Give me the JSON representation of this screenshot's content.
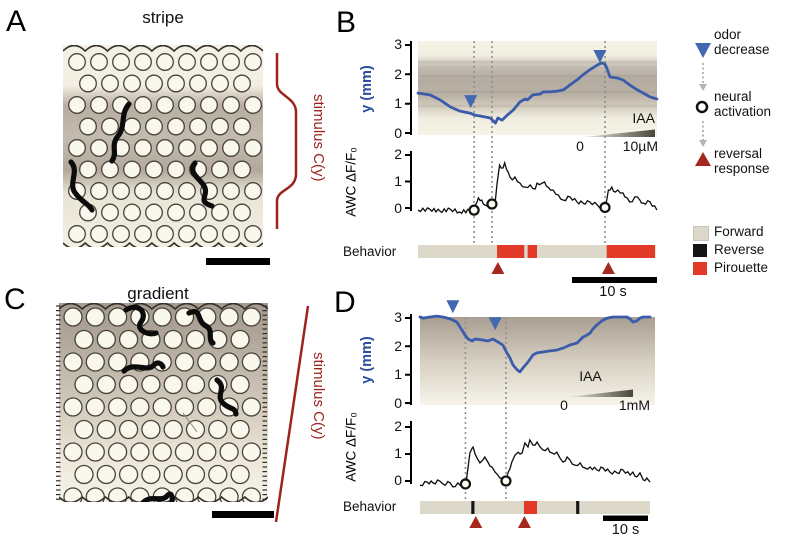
{
  "figure": {
    "panel_a": {
      "letter": "A",
      "title": "stripe",
      "stimulus_label": "stimulus C(y)"
    },
    "panel_c": {
      "letter": "C",
      "title": "gradient",
      "stimulus_label": "stimulus C(y)"
    },
    "panel_b": {
      "letter": "B",
      "pos_axis_label": "y (mm)",
      "pos_ticks": [
        "3",
        "2",
        "1",
        "0"
      ],
      "awc_axis_label": "AWC ΔF/F₀",
      "awc_ticks": [
        "2",
        "1",
        "0"
      ],
      "behavior_label": "Behavior",
      "iaa_label": "IAA",
      "iaa_min": "0",
      "iaa_max": "10µM",
      "time_scale_label": "10 s"
    },
    "panel_d": {
      "letter": "D",
      "pos_axis_label": "y (mm)",
      "pos_ticks": [
        "3",
        "2",
        "1",
        "0"
      ],
      "awc_axis_label": "AWC ΔF/F₀",
      "awc_ticks": [
        "2",
        "1",
        "0"
      ],
      "behavior_label": "Behavior",
      "iaa_label": "IAA",
      "iaa_min": "0",
      "iaa_max": "1mM",
      "time_scale_label": "10 s"
    }
  },
  "legend": {
    "markers": [
      {
        "label": "odor decrease"
      },
      {
        "label": "neural activation"
      },
      {
        "label": "reversal response"
      }
    ],
    "behavior_key": [
      {
        "label": "Forward",
        "color": "#dcd8ca"
      },
      {
        "label": "Reverse",
        "color": "#171513"
      },
      {
        "label": "Pirouette",
        "color": "#e23a29"
      }
    ]
  },
  "colors": {
    "trace_blue": "#3b5bab",
    "odor_marker_blue": "#4468b0",
    "stimulus_red": "#9c241c",
    "reversal_red": "#a5281e",
    "pirouette_red": "#e23a29",
    "forward_gray": "#dcd8ca",
    "reverse_black": "#171513"
  },
  "chart_data": [
    {
      "id": "B_position",
      "type": "line",
      "title": "worm position in odor stripe",
      "xlabel": "time (s, scale bar 10 s)",
      "ylabel": "y (mm)",
      "ylim": [
        0,
        3
      ],
      "background": "horizontal IAA odor stripe 0–10µM",
      "points": [
        [
          0,
          1.36
        ],
        [
          1.4,
          1.3
        ],
        [
          2.6,
          1.13
        ],
        [
          3.8,
          0.89
        ],
        [
          4.9,
          0.75
        ],
        [
          6.1,
          0.68
        ],
        [
          6.7,
          0.61
        ],
        [
          7.3,
          0.58
        ],
        [
          8.5,
          0.51
        ],
        [
          9.1,
          0.34
        ],
        [
          9.4,
          0.51
        ],
        [
          9.9,
          0.44
        ],
        [
          10.5,
          0.61
        ],
        [
          11.2,
          0.78
        ],
        [
          12,
          1.06
        ],
        [
          12.6,
          1.16
        ],
        [
          12.9,
          1.13
        ],
        [
          13.5,
          1.3
        ],
        [
          14.4,
          1.33
        ],
        [
          14.7,
          1.4
        ],
        [
          15.5,
          1.4
        ],
        [
          16.4,
          1.43
        ],
        [
          17.1,
          1.47
        ],
        [
          17.9,
          1.64
        ],
        [
          18.7,
          1.81
        ],
        [
          19.4,
          1.98
        ],
        [
          20.2,
          2.15
        ],
        [
          21.1,
          2.32
        ],
        [
          21.6,
          2.39
        ],
        [
          22,
          2.35
        ],
        [
          22.2,
          2.22
        ],
        [
          22.6,
          1.91
        ],
        [
          23.4,
          1.88
        ],
        [
          24.1,
          1.81
        ],
        [
          24.9,
          1.64
        ],
        [
          25.8,
          1.47
        ],
        [
          26.5,
          1.36
        ],
        [
          27.3,
          1.23
        ],
        [
          28.1,
          1.16
        ]
      ],
      "odor_decrease_events": [
        [
          6.2,
          0.78
        ],
        [
          21.4,
          2.32
        ]
      ],
      "dotted_event_times": [
        6.6,
        8.7,
        22
      ]
    },
    {
      "id": "B_awc",
      "type": "line",
      "ylabel": "AWC ΔF/F₀",
      "ylim": [
        0,
        2
      ],
      "points": [
        [
          0,
          -0.08
        ],
        [
          1.4,
          -0.05
        ],
        [
          2.6,
          -0.12
        ],
        [
          3.8,
          -0.05
        ],
        [
          4.9,
          -0.15
        ],
        [
          6.1,
          -0.1
        ],
        [
          6.4,
          -0.19
        ],
        [
          6.7,
          0.1
        ],
        [
          7.1,
          0.38
        ],
        [
          7.5,
          0.3
        ],
        [
          7.9,
          0.11
        ],
        [
          8.5,
          0.15
        ],
        [
          8.7,
          0.15
        ],
        [
          9.1,
          0.3
        ],
        [
          9.3,
          0.94
        ],
        [
          9.6,
          1.62
        ],
        [
          10,
          1.51
        ],
        [
          10.2,
          1.7
        ],
        [
          10.6,
          1.36
        ],
        [
          11.1,
          1.06
        ],
        [
          11.4,
          1.17
        ],
        [
          12,
          0.94
        ],
        [
          12.6,
          0.79
        ],
        [
          13.2,
          0.87
        ],
        [
          13.8,
          0.72
        ],
        [
          14,
          0.94
        ],
        [
          14.6,
          0.94
        ],
        [
          14.9,
          0.98
        ],
        [
          15.3,
          0.79
        ],
        [
          15.9,
          0.68
        ],
        [
          16.5,
          0.49
        ],
        [
          17.1,
          0.3
        ],
        [
          17.9,
          0.42
        ],
        [
          18.7,
          0.23
        ],
        [
          19.4,
          0.19
        ],
        [
          20.2,
          0.23
        ],
        [
          21.1,
          0.11
        ],
        [
          21.6,
          0.04
        ],
        [
          22,
          0.02
        ],
        [
          22.4,
          0.68
        ],
        [
          22.8,
          0.79
        ],
        [
          23.2,
          0.6
        ],
        [
          23.5,
          0.68
        ],
        [
          24.1,
          0.57
        ],
        [
          24.6,
          0.38
        ],
        [
          24.9,
          0.23
        ],
        [
          25.8,
          0.42
        ],
        [
          26.1,
          0.3
        ],
        [
          26.5,
          0.19
        ],
        [
          27.3,
          0.23
        ],
        [
          28.1,
          -0.08
        ]
      ],
      "neural_activation_events": [
        [
          6.6,
          -0.08
        ],
        [
          8.7,
          0.15
        ],
        [
          22,
          0.02
        ]
      ]
    },
    {
      "id": "B_behavior",
      "type": "timeline",
      "duration_s": 27.9,
      "segments": [
        {
          "state": "Forward",
          "start": 0,
          "end": 9.3
        },
        {
          "state": "Pirouette",
          "start": 9.3,
          "end": 12.5
        },
        {
          "state": "Forward",
          "start": 12.5,
          "end": 12.9
        },
        {
          "state": "Pirouette",
          "start": 12.9,
          "end": 14
        },
        {
          "state": "Forward",
          "start": 14,
          "end": 22.2
        },
        {
          "state": "Pirouette",
          "start": 22.2,
          "end": 27.9
        }
      ],
      "reversal_response_times": [
        9.4,
        22.4
      ]
    },
    {
      "id": "D_position",
      "type": "line",
      "title": "worm position in odor gradient",
      "xlabel": "time (s, scale bar 10 s)",
      "ylabel": "y (mm)",
      "ylim": [
        0,
        3
      ],
      "background": "vertical IAA gradient 0–1mM (high at top)",
      "points": [
        [
          0,
          3.04
        ],
        [
          0.7,
          3
        ],
        [
          2.2,
          3.04
        ],
        [
          3.8,
          3.07
        ],
        [
          5.1,
          3.04
        ],
        [
          6.7,
          2.97
        ],
        [
          7.3,
          2.93
        ],
        [
          8.2,
          2.86
        ],
        [
          9.3,
          2.58
        ],
        [
          10,
          2.4
        ],
        [
          10.7,
          2.26
        ],
        [
          11.6,
          2.19
        ],
        [
          12.2,
          2.26
        ],
        [
          13.8,
          2.23
        ],
        [
          15.1,
          2.19
        ],
        [
          16.2,
          2.26
        ],
        [
          17.3,
          2.16
        ],
        [
          18.4,
          2.05
        ],
        [
          19.3,
          1.77
        ],
        [
          20,
          1.59
        ],
        [
          20.7,
          1.34
        ],
        [
          21.6,
          1.17
        ],
        [
          22.2,
          1.1
        ],
        [
          22.9,
          1.24
        ],
        [
          24,
          1.45
        ],
        [
          25.1,
          1.7
        ],
        [
          26,
          1.77
        ],
        [
          27.1,
          1.8
        ],
        [
          28.9,
          1.84
        ],
        [
          30.4,
          1.87
        ],
        [
          31.8,
          1.94
        ],
        [
          33.3,
          2.05
        ],
        [
          34.9,
          2.12
        ],
        [
          35.6,
          2.23
        ],
        [
          36.2,
          2.33
        ],
        [
          37.1,
          2.4
        ],
        [
          37.8,
          2.47
        ],
        [
          38.4,
          2.61
        ],
        [
          39.3,
          2.76
        ],
        [
          40.4,
          2.9
        ],
        [
          41.6,
          3
        ],
        [
          42.9,
          3.04
        ],
        [
          44.4,
          3.04
        ],
        [
          46,
          3.04
        ],
        [
          46.7,
          2.97
        ],
        [
          47.3,
          2.86
        ],
        [
          48.2,
          2.9
        ],
        [
          48.9,
          3
        ],
        [
          49.6,
          3.04
        ],
        [
          51.1,
          3.04
        ]
      ],
      "odor_decrease_events": [
        [
          7.3,
          3.1
        ],
        [
          16.7,
          2.5
        ]
      ],
      "dotted_event_times": [
        10.1,
        19.1
      ]
    },
    {
      "id": "D_awc",
      "type": "line",
      "ylabel": "AWC ΔF/F₀",
      "ylim": [
        0,
        2
      ],
      "points": [
        [
          0,
          -0.15
        ],
        [
          1.6,
          -0.04
        ],
        [
          2.9,
          -0.07
        ],
        [
          4.4,
          0
        ],
        [
          5.1,
          -0.11
        ],
        [
          6.7,
          -0.07
        ],
        [
          7.3,
          -0.22
        ],
        [
          8.4,
          -0.07
        ],
        [
          9.6,
          -0.15
        ],
        [
          10.2,
          -0.11
        ],
        [
          10.7,
          0.52
        ],
        [
          11.1,
          1.04
        ],
        [
          11.6,
          1.22
        ],
        [
          11.8,
          1.26
        ],
        [
          12.7,
          0.85
        ],
        [
          13.3,
          0.67
        ],
        [
          14,
          0.78
        ],
        [
          14.4,
          0.89
        ],
        [
          15.1,
          0.7
        ],
        [
          16,
          0.52
        ],
        [
          16.7,
          0.33
        ],
        [
          17.3,
          0.22
        ],
        [
          18.2,
          0.11
        ],
        [
          18.9,
          -0.04
        ],
        [
          19.1,
          0
        ],
        [
          19.6,
          0.33
        ],
        [
          20.4,
          0.7
        ],
        [
          21.1,
          0.96
        ],
        [
          21.8,
          1.07
        ],
        [
          22.7,
          1.04
        ],
        [
          23.3,
          1.41
        ],
        [
          24,
          1.26
        ],
        [
          24.4,
          1.52
        ],
        [
          25.1,
          1.33
        ],
        [
          26,
          1.44
        ],
        [
          26.7,
          1.26
        ],
        [
          27.3,
          1.15
        ],
        [
          28.4,
          1.22
        ],
        [
          29.3,
          1.04
        ],
        [
          30.4,
          1.07
        ],
        [
          31.1,
          0.85
        ],
        [
          31.8,
          0.7
        ],
        [
          32.7,
          0.89
        ],
        [
          33.3,
          0.78
        ],
        [
          34.4,
          0.59
        ],
        [
          35.6,
          0.67
        ],
        [
          36.7,
          0.48
        ],
        [
          37.8,
          0.52
        ],
        [
          39.3,
          0.41
        ],
        [
          40.7,
          0.48
        ],
        [
          42.2,
          0.33
        ],
        [
          43.8,
          0.3
        ],
        [
          45.1,
          0.41
        ],
        [
          46.7,
          0.22
        ],
        [
          47.3,
          0.33
        ],
        [
          48.2,
          0.15
        ],
        [
          48.9,
          0.3
        ],
        [
          49.6,
          0.04
        ],
        [
          50.4,
          0.11
        ],
        [
          51.1,
          -0.04
        ]
      ],
      "neural_activation_events": [
        [
          10.1,
          -0.11
        ],
        [
          19.1,
          0
        ]
      ]
    },
    {
      "id": "D_behavior",
      "type": "timeline",
      "duration_s": 51.1,
      "segments": [
        {
          "state": "Forward",
          "start": 0,
          "end": 11.4
        },
        {
          "state": "Reverse",
          "start": 11.4,
          "end": 12.1
        },
        {
          "state": "Forward",
          "start": 12.1,
          "end": 23.1
        },
        {
          "state": "Pirouette",
          "start": 23.1,
          "end": 26
        },
        {
          "state": "Forward",
          "start": 26,
          "end": 34.7
        },
        {
          "state": "Reverse",
          "start": 34.7,
          "end": 35.4
        },
        {
          "state": "Forward",
          "start": 35.4,
          "end": 51.1
        }
      ],
      "reversal_response_times": [
        12.4,
        23.2
      ]
    }
  ]
}
